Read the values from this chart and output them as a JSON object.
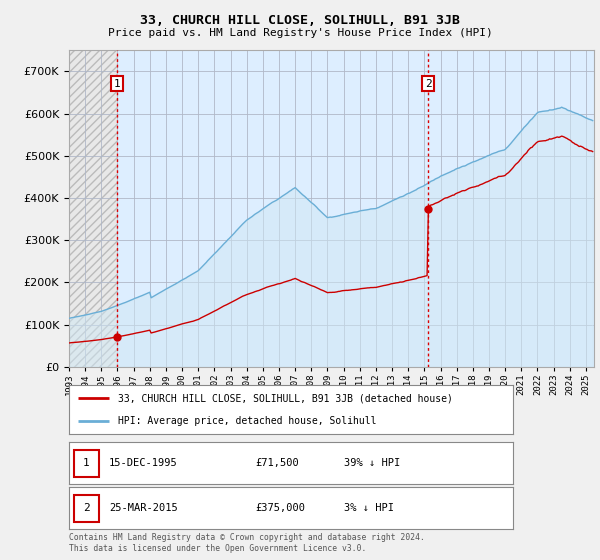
{
  "title": "33, CHURCH HILL CLOSE, SOLIHULL, B91 3JB",
  "subtitle": "Price paid vs. HM Land Registry's House Price Index (HPI)",
  "ylim": [
    0,
    750000
  ],
  "xlim_start": 1993.0,
  "xlim_end": 2025.5,
  "sale1_year": 1995.96,
  "sale1_price": 71500,
  "sale2_year": 2015.23,
  "sale2_price": 375000,
  "hpi_color": "#6aaed6",
  "hpi_fill_color": "#d0e8f5",
  "sale_color": "#cc0000",
  "hatch_color": "#bbbbbb",
  "grid_color": "#c8c8c8",
  "bg_color": "#f0f0f0",
  "plot_bg_left": "#e8e8e8",
  "plot_bg_right": "#ddeeff",
  "legend_sale_label": "33, CHURCH HILL CLOSE, SOLIHULL, B91 3JB (detached house)",
  "legend_hpi_label": "HPI: Average price, detached house, Solihull",
  "footnote": "Contains HM Land Registry data © Crown copyright and database right 2024.\nThis data is licensed under the Open Government Licence v3.0."
}
